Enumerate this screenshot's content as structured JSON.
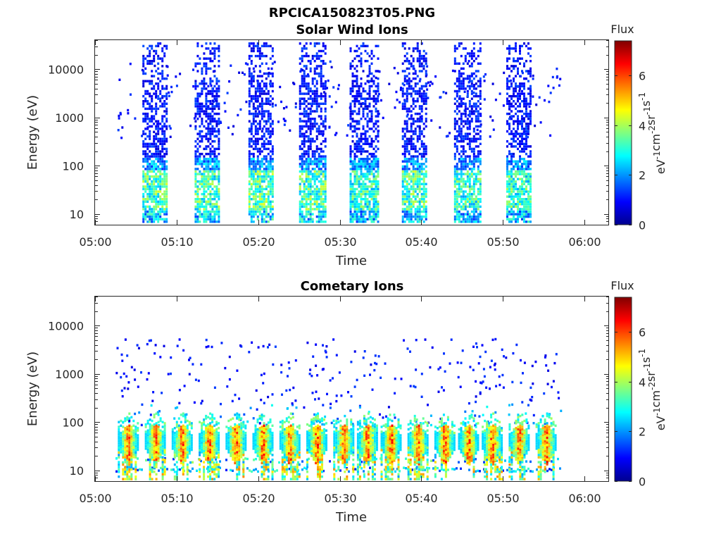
{
  "figure": {
    "title": "RPCICA150823T05.PNG"
  },
  "chart_data": [
    {
      "type": "heatmap",
      "title": "Solar Wind Ions",
      "xlabel": "Time",
      "ylabel": "Energy (eV)",
      "x_ticks": [
        "05:00",
        "05:10",
        "05:20",
        "05:30",
        "05:40",
        "05:50",
        "06:00"
      ],
      "xlim": [
        "05:00",
        "06:03"
      ],
      "y_scale": "log",
      "y_ticks": [
        "10",
        "100",
        "1000",
        "10000"
      ],
      "ylim": [
        6,
        40000
      ],
      "colorbar": {
        "title": "Flux",
        "label": "eV-1cm-2sr-1s-1",
        "ticks": [
          "0",
          "2",
          "4",
          "6"
        ],
        "range": [
          0,
          7.4
        ],
        "colormap": "jet"
      },
      "grid": false,
      "bursts": [
        {
          "start": "05:05.8",
          "end": "05:08.8",
          "level_low": 3.6,
          "level_high": 0.6
        },
        {
          "start": "05:12.2",
          "end": "05:15.2",
          "level_low": 3.5,
          "level_high": 0.6
        },
        {
          "start": "05:18.8",
          "end": "05:21.8",
          "level_low": 3.7,
          "level_high": 0.6
        },
        {
          "start": "05:25.0",
          "end": "05:28.2",
          "level_low": 3.6,
          "level_high": 0.6
        },
        {
          "start": "05:31.2",
          "end": "05:34.6",
          "level_low": 3.4,
          "level_high": 0.6
        },
        {
          "start": "05:37.6",
          "end": "05:40.6",
          "level_low": 3.6,
          "level_high": 0.6
        },
        {
          "start": "05:44.0",
          "end": "05:47.2",
          "level_low": 3.4,
          "level_high": 0.6
        },
        {
          "start": "05:50.4",
          "end": "05:53.4",
          "level_low": 3.5,
          "level_high": 0.6
        }
      ],
      "scattered_range": {
        "start": "05:02.5",
        "end": "05:57.0"
      }
    },
    {
      "type": "heatmap",
      "title": "Cometary Ions",
      "xlabel": "Time",
      "ylabel": "Energy (eV)",
      "x_ticks": [
        "05:00",
        "05:10",
        "05:20",
        "05:30",
        "05:40",
        "05:50",
        "06:00"
      ],
      "xlim": [
        "05:00",
        "06:03"
      ],
      "y_scale": "log",
      "y_ticks": [
        "10",
        "100",
        "1000",
        "10000"
      ],
      "ylim": [
        6,
        40000
      ],
      "colorbar": {
        "title": "Flux",
        "label": "eV-1cm-2sr-1s-1",
        "ticks": [
          "0",
          "2",
          "4",
          "6"
        ],
        "range": [
          0,
          7.4
        ],
        "colormap": "jet"
      },
      "grid": false,
      "band_energy_range": [
        15,
        60
      ],
      "band_peak_level": 6.3,
      "band_centers": [
        "05:04.0",
        "05:07.3",
        "05:10.6",
        "05:13.9",
        "05:17.2",
        "05:20.5",
        "05:23.8",
        "05:27.1",
        "05:30.4",
        "05:33.3",
        "05:36.2",
        "05:39.5",
        "05:42.8",
        "05:45.7",
        "05:48.6",
        "05:51.9",
        "05:55.2"
      ],
      "scattered_range": {
        "start": "05:02.5",
        "end": "05:57.0"
      }
    }
  ]
}
